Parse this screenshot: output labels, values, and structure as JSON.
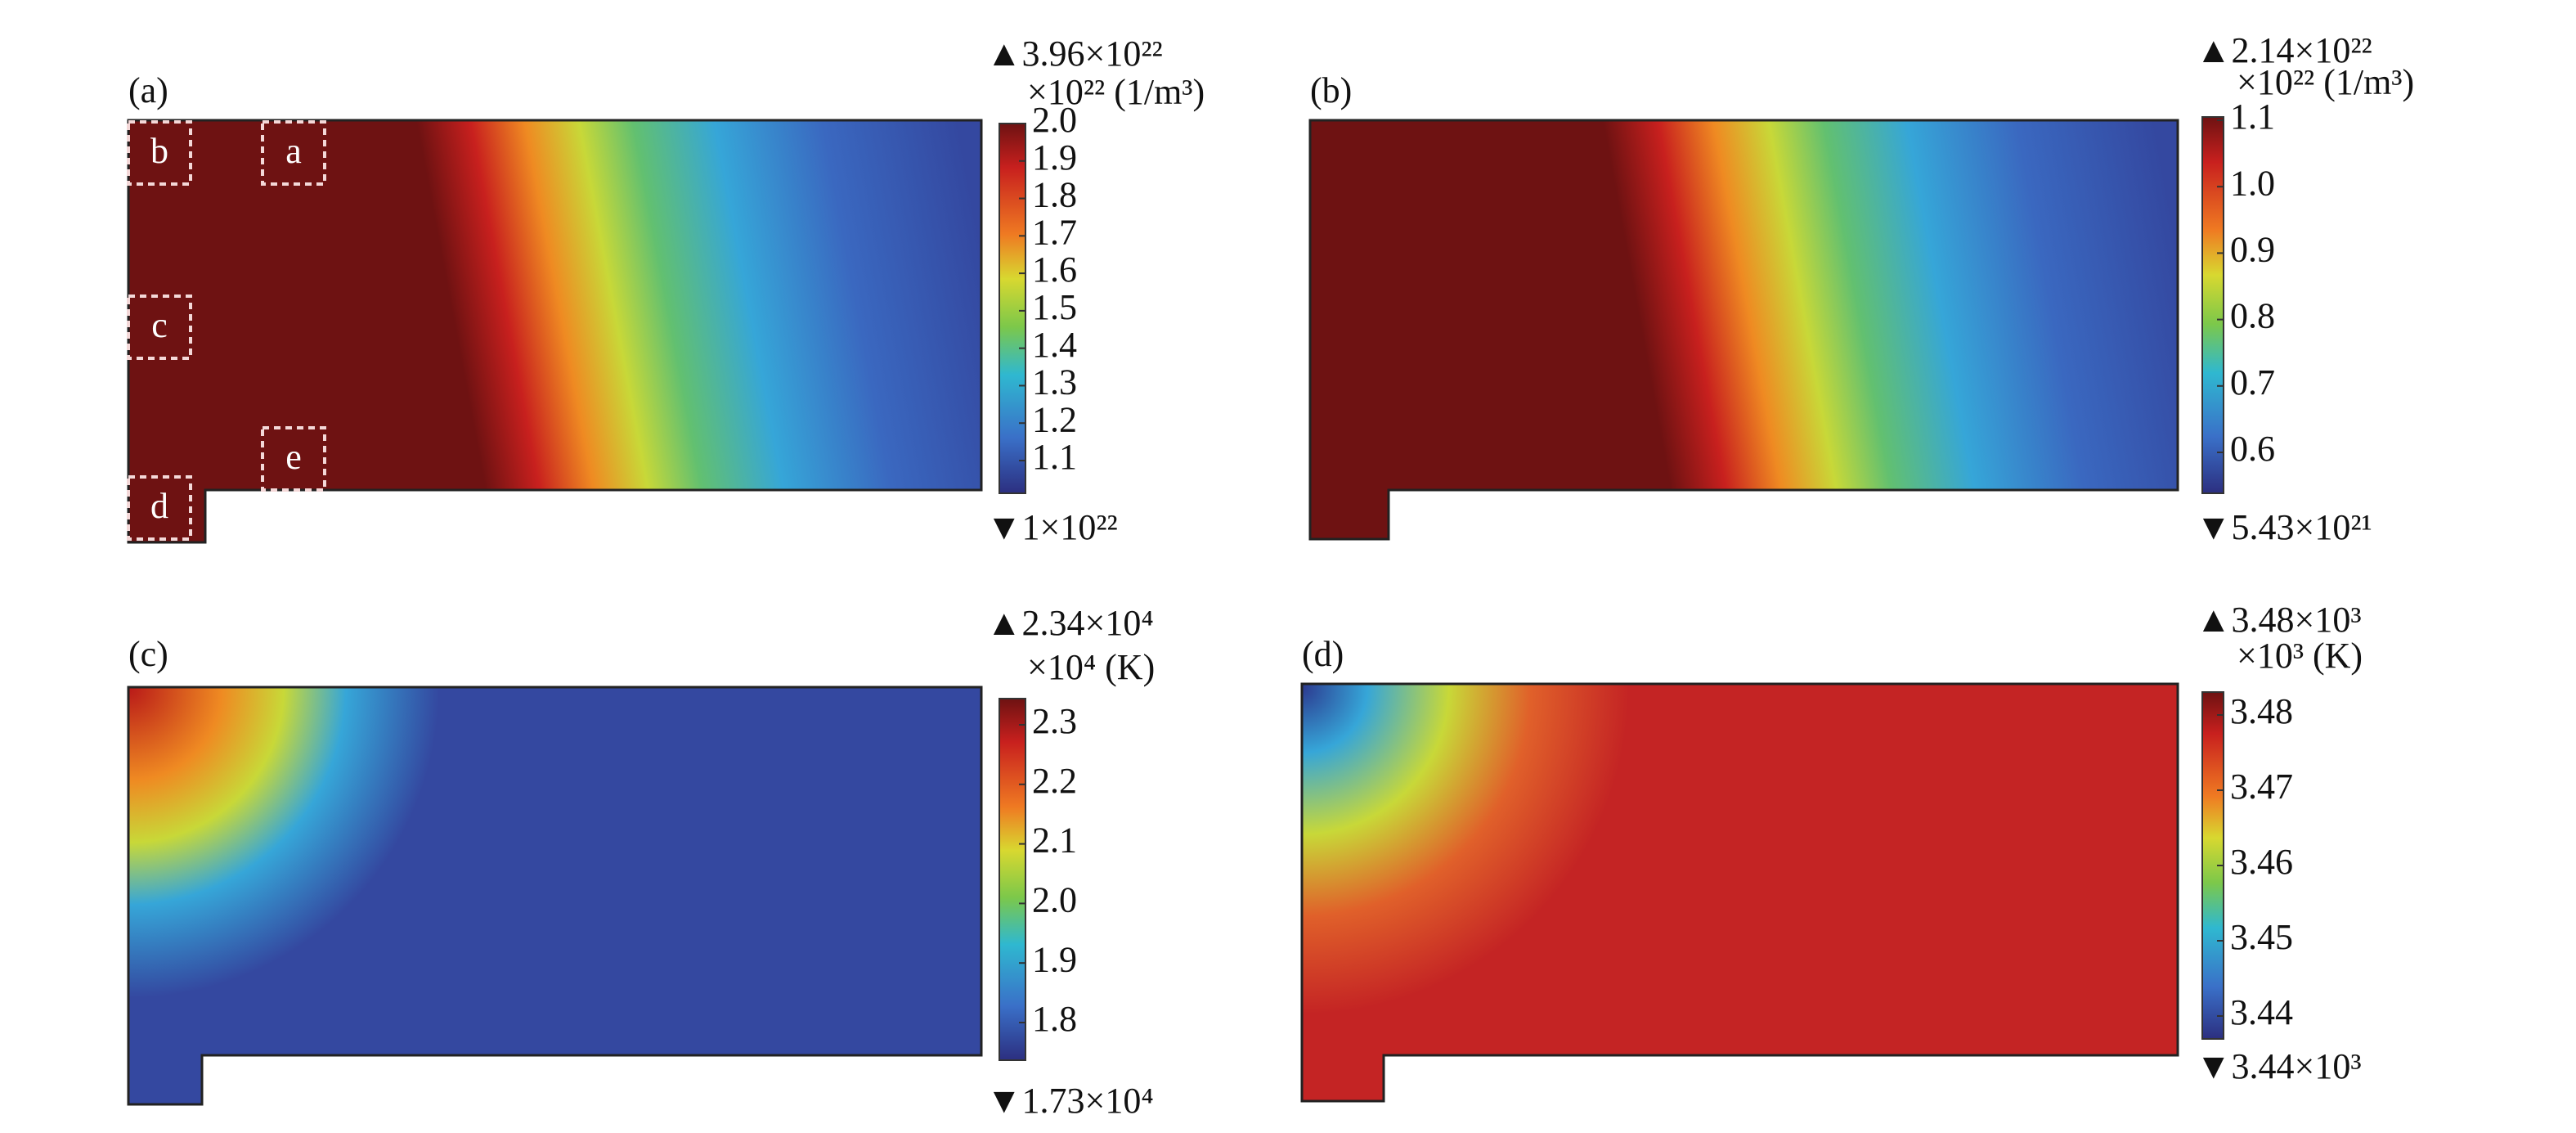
{
  "panels": [
    {
      "label": "(a)",
      "max_label": "▲3.96×10²²",
      "unit_label": "×10²² (1/m³)",
      "min_label": "▼1×10²²",
      "ticks": [
        "2.0",
        "1.9",
        "1.8",
        "1.7",
        "1.6",
        "1.5",
        "1.4",
        "1.3",
        "1.2",
        "1.1"
      ],
      "regions": [
        "a",
        "b",
        "c",
        "d",
        "e"
      ]
    },
    {
      "label": "(b)",
      "max_label": "▲2.14×10²²",
      "unit_label": "×10²² (1/m³)",
      "min_label": "▼5.43×10²¹",
      "ticks": [
        "1.1",
        "1.0",
        "0.9",
        "0.8",
        "0.7",
        "0.6"
      ]
    },
    {
      "label": "(c)",
      "max_label": "▲2.34×10⁴",
      "unit_label": "×10⁴ (K)",
      "min_label": "▼1.73×10⁴",
      "ticks": [
        "2.3",
        "2.2",
        "2.1",
        "2.0",
        "1.9",
        "1.8"
      ]
    },
    {
      "label": "(d)",
      "max_label": "▲3.48×10³",
      "unit_label": "×10³ (K)",
      "min_label": "▼3.44×10³",
      "ticks": [
        "3.48",
        "3.47",
        "3.46",
        "3.45",
        "3.44"
      ]
    }
  ]
}
